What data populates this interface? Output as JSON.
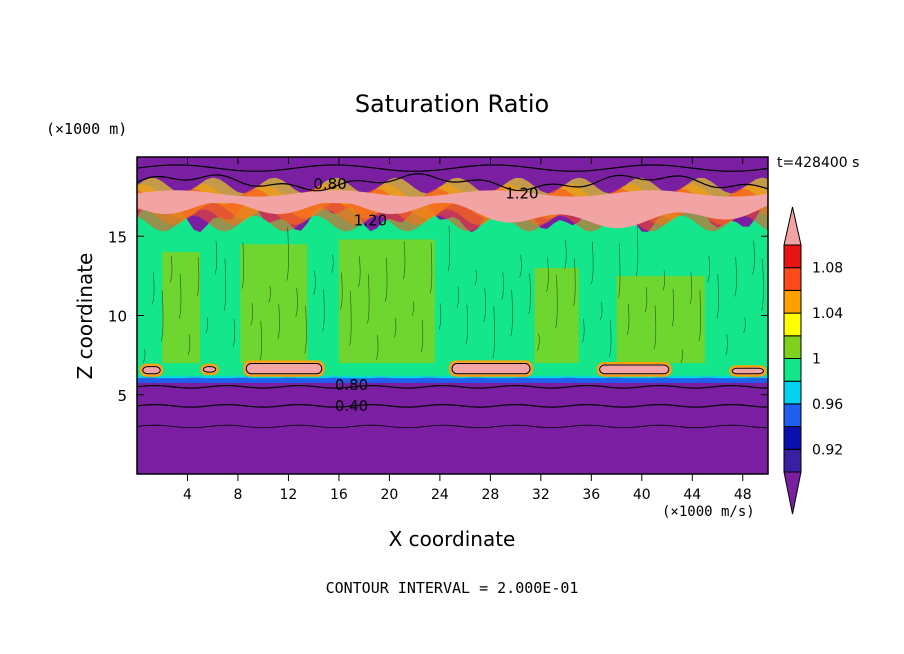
{
  "chart_data": {
    "type": "heatmap",
    "title": "Saturation Ratio",
    "xlabel": "X coordinate",
    "ylabel": "Z coordinate",
    "x_unit": "(×1000 m/s)",
    "y_unit": "(×1000 m)",
    "time_label": "t=428400 s",
    "footer": "CONTOUR INTERVAL = 2.000E-01",
    "xlim": [
      0,
      50
    ],
    "ylim": [
      0,
      20
    ],
    "x_ticks": [
      4,
      8,
      12,
      16,
      20,
      24,
      28,
      32,
      36,
      40,
      44,
      48
    ],
    "y_ticks": [
      5,
      10,
      15
    ],
    "colorbar": {
      "tick_labels": [
        "0.92",
        "0.96",
        "1",
        "1.04",
        "1.08"
      ],
      "tick_values": [
        0.92,
        0.96,
        1.0,
        1.04,
        1.08
      ],
      "levels": [
        0.9,
        0.92,
        0.94,
        0.96,
        0.98,
        1.0,
        1.02,
        1.04,
        1.06,
        1.08,
        1.1
      ],
      "colors": [
        "#7a1fa2",
        "#3b1fa2",
        "#0a10b0",
        "#1f5ff0",
        "#00d2f0",
        "#14e68c",
        "#7ed21e",
        "#ffff00",
        "#ffa000",
        "#ff4a1e",
        "#e81414",
        "#f2a4a4"
      ],
      "extend": "both"
    },
    "bands": [
      {
        "level": "below",
        "color": "#7a1fa2",
        "zmin": 0,
        "zmax": 5.8
      },
      {
        "level": "0.92-0.98",
        "color": "#1f5ff0",
        "zmin": 5.8,
        "zmax": 6.1
      },
      {
        "level": "0.98-1.00",
        "color": "#14e68c",
        "zmin": 6.1,
        "zmax": 16.5
      },
      {
        "level": "1.00-1.02",
        "color": "#7ed21e",
        "zmin": 6.5,
        "zmax": 15.5
      },
      {
        "level": "above",
        "color": "#f2a4a4",
        "zmin": 16.3,
        "zmax": 18.0
      },
      {
        "level": "below",
        "color": "#7a1fa2",
        "zmin": 18.0,
        "zmax": 20
      }
    ],
    "contours": [
      {
        "label": "0.80",
        "x": 15.3,
        "z": 18.3
      },
      {
        "label": "1.20",
        "x": 30.5,
        "z": 17.7
      },
      {
        "label": "1.20",
        "x": 18.5,
        "z": 16.0
      },
      {
        "label": "0.80",
        "x": 17.0,
        "z": 5.6
      },
      {
        "label": "0.40",
        "x": 17.0,
        "z": 4.3
      }
    ],
    "high_patches": [
      {
        "x0": 0.3,
        "x1": 2.0,
        "z0": 6.2,
        "z1": 6.9
      },
      {
        "x0": 5.1,
        "x1": 6.4,
        "z0": 6.3,
        "z1": 6.9
      },
      {
        "x0": 8.5,
        "x1": 14.8,
        "z0": 6.2,
        "z1": 7.1
      },
      {
        "x0": 24.8,
        "x1": 31.3,
        "z0": 6.2,
        "z1": 7.1
      },
      {
        "x0": 36.5,
        "x1": 42.3,
        "z0": 6.2,
        "z1": 7.0
      },
      {
        "x0": 47.0,
        "x1": 49.8,
        "z0": 6.2,
        "z1": 6.8
      }
    ]
  }
}
